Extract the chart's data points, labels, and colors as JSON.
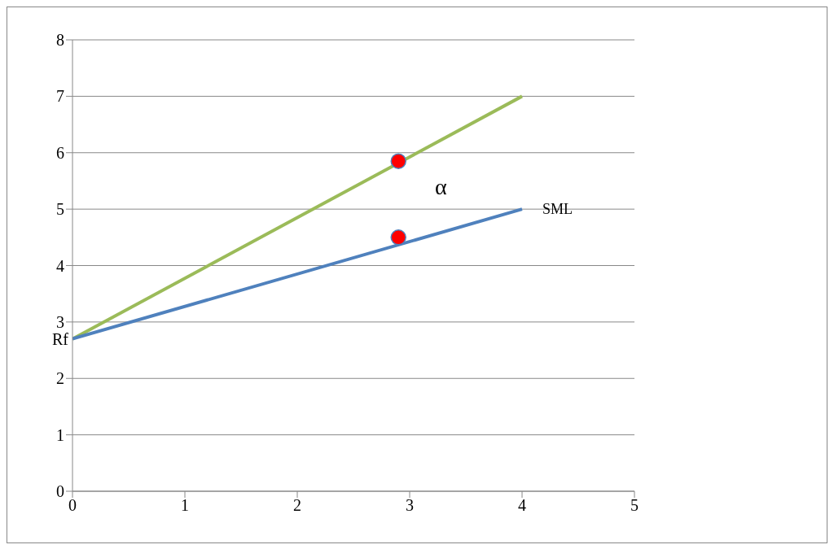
{
  "chart_data": {
    "type": "line",
    "xlim": [
      0,
      5
    ],
    "xticks": [
      0,
      1,
      2,
      3,
      4,
      5
    ],
    "ylim": [
      0,
      8
    ],
    "yticks": [
      0,
      1,
      2,
      3,
      4,
      5,
      6,
      7,
      8
    ],
    "grid": "y",
    "series": [
      {
        "color": "#9bbb59",
        "x": [
          0,
          4
        ],
        "values": [
          2.7,
          7
        ]
      },
      {
        "name": "SML",
        "color": "#4f81bd",
        "x": [
          0,
          4
        ],
        "values": [
          2.7,
          5
        ]
      },
      {
        "type": "scatter",
        "color": "#ff0000",
        "x": [
          2.9,
          2.9
        ],
        "values": [
          5.85,
          4.5
        ]
      }
    ],
    "annotations": [
      {
        "text": "Rf",
        "x": 0,
        "y": 2.7
      },
      "α"
    ]
  }
}
